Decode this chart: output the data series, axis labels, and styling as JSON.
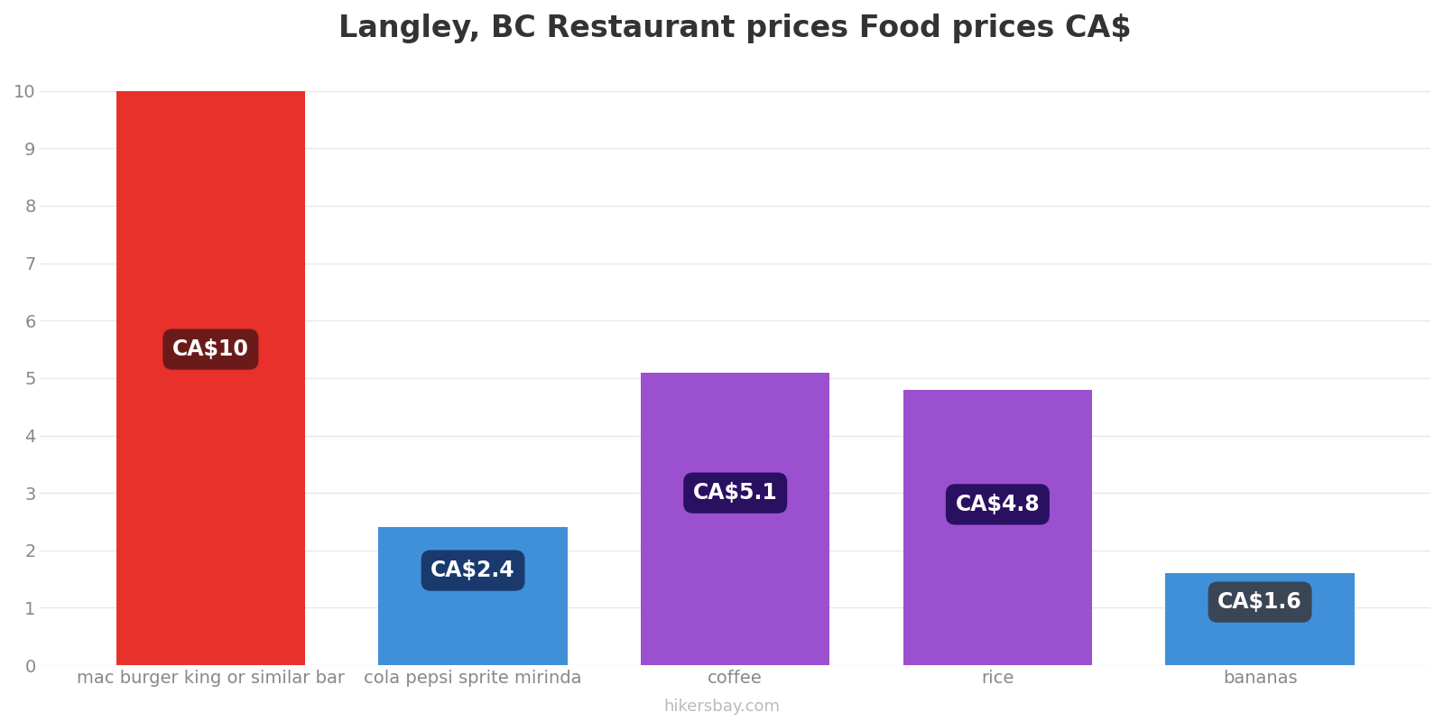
{
  "categories": [
    "mac burger king or similar bar",
    "cola pepsi sprite mirinda",
    "coffee",
    "rice",
    "bananas"
  ],
  "values": [
    10.0,
    2.4,
    5.1,
    4.8,
    1.6
  ],
  "bar_colors": [
    "#e8312a",
    "#4090d9",
    "#9b50d0",
    "#9b50d0",
    "#4090d9"
  ],
  "label_box_colors": [
    "#6b1a1a",
    "#1a3a6e",
    "#2a1060",
    "#2a1060",
    "#3a4555"
  ],
  "labels": [
    "CA$10",
    "CA$2.4",
    "CA$5.1",
    "CA$4.8",
    "CA$1.6"
  ],
  "label_y_positions": [
    5.5,
    1.65,
    3.0,
    2.8,
    1.1
  ],
  "title": "Langley, BC Restaurant prices Food prices CA$",
  "ylim": [
    0,
    10.5
  ],
  "yticks": [
    0,
    1,
    2,
    3,
    4,
    5,
    6,
    7,
    8,
    9,
    10
  ],
  "watermark": "hikersbay.com",
  "title_fontsize": 24,
  "label_fontsize": 17,
  "tick_fontsize": 14,
  "background_color": "#ffffff",
  "grid_color": "#e8e8e8",
  "bar_width": 0.72
}
